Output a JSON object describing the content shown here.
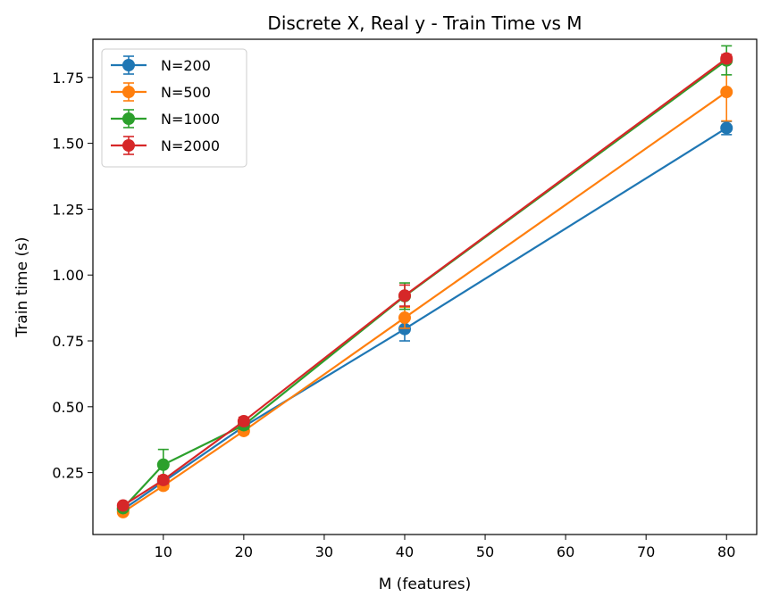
{
  "chart_data": {
    "type": "line",
    "title": "Discrete X, Real y - Train Time vs M",
    "xlabel": "M (features)",
    "ylabel": "Train time (s)",
    "xlim": [
      1.25,
      83.75
    ],
    "ylim": [
      0.015,
      1.895
    ],
    "xticks": [
      10,
      20,
      30,
      40,
      50,
      60,
      70,
      80
    ],
    "yticks": [
      0.25,
      0.5,
      0.75,
      1.0,
      1.25,
      1.5,
      1.75
    ],
    "ytick_labels": [
      "0.25",
      "0.50",
      "0.75",
      "1.00",
      "1.25",
      "1.50",
      "1.75"
    ],
    "grid": false,
    "legend_position": "top-left",
    "x": [
      5,
      10,
      20,
      40,
      80
    ],
    "series": [
      {
        "name": "N=200",
        "color": "#1f77b4",
        "values": [
          0.11,
          0.215,
          0.425,
          0.795,
          1.558
        ],
        "errors": [
          0.01,
          0.015,
          0.015,
          0.045,
          0.025
        ]
      },
      {
        "name": "N=500",
        "color": "#ff7f0e",
        "values": [
          0.1,
          0.2,
          0.408,
          0.838,
          1.695
        ],
        "errors": [
          0.008,
          0.012,
          0.012,
          0.04,
          0.11
        ]
      },
      {
        "name": "N=1000",
        "color": "#2ca02c",
        "values": [
          0.115,
          0.28,
          0.43,
          0.92,
          1.815
        ],
        "errors": [
          0.01,
          0.058,
          0.015,
          0.05,
          0.055
        ]
      },
      {
        "name": "N=2000",
        "color": "#d62728",
        "values": [
          0.125,
          0.222,
          0.445,
          0.922,
          1.822
        ],
        "errors": [
          0.01,
          0.015,
          0.015,
          0.04,
          0.015
        ]
      }
    ]
  }
}
